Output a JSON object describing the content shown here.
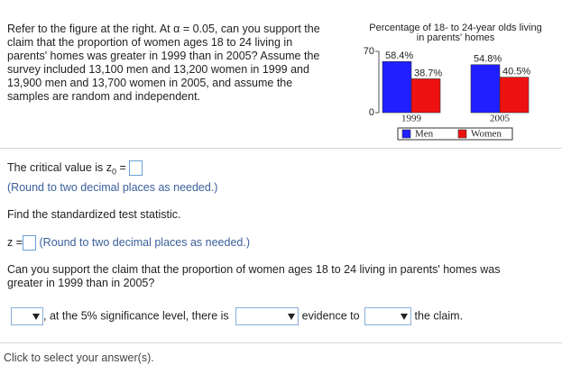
{
  "problem": {
    "lines": [
      "Refer to the figure at the right. At α = 0.05, can you support the",
      "claim that the proportion of women ages 18 to 24 living in",
      "parents' homes was greater in 1999 than in 2005? Assume the",
      "survey included 13,100 men and 13,200 women in 1999 and",
      "13,900 men and 13,700 women in 2005, and assume the",
      "samples are random and independent."
    ]
  },
  "figure": {
    "type": "bar",
    "title_lines": [
      "Percentage of 18- to 24-year olds living",
      "in parents' homes"
    ],
    "categories": [
      "1999",
      "2005"
    ],
    "series": [
      {
        "name": "Men",
        "color": "#1f1fff",
        "values": [
          58.4,
          54.8
        ],
        "value_labels": [
          "58.4%",
          "54.8%"
        ]
      },
      {
        "name": "Women",
        "color": "#ee1111",
        "values": [
          38.7,
          40.5
        ],
        "value_labels": [
          "38.7%",
          "40.5%"
        ]
      }
    ],
    "ylim": [
      0,
      70
    ],
    "yticks": [
      0,
      70
    ]
  },
  "questions": {
    "critical": {
      "text": "The critical value is z",
      "sub": "0",
      "eq": "=",
      "hint": "(Round to two decimal places as needed.)"
    },
    "find": "Find the standardized test statistic.",
    "z": {
      "label": "z =",
      "hint": "(Round to two decimal places as needed.)"
    },
    "claim": [
      "Can you support the claim that the proportion of women ages 18 to 24 living in parents' homes was",
      "greater in 1999 than in 2005?"
    ],
    "answer": {
      "part1": ", at the 5% significance level, there is",
      "part2": "evidence to",
      "part3": "the claim."
    }
  },
  "footer": "Click to select your answer(s)."
}
